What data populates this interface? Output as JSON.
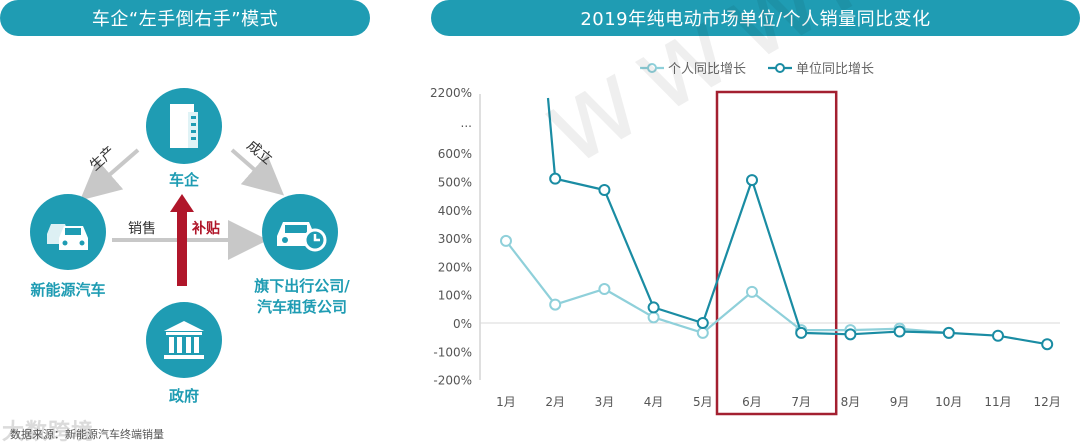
{
  "left_panel": {
    "title": "车企“左手倒右手”模式",
    "nodes": {
      "top": "车企",
      "left": "新能源汽车",
      "right": [
        "旗下出行公司/",
        "汽车租赁公司"
      ],
      "bottom": "政府"
    },
    "edges": {
      "produce": "生产",
      "establish": "成立",
      "sales": "销售",
      "subsidy": "补贴"
    },
    "colors": {
      "accent": "#1f9cb3",
      "highlight": "#b0162a",
      "arrow": "#c8c8c8"
    }
  },
  "footnote": "数据来源：新能源汽车终端销量",
  "watermark_logo": "大数跨境",
  "chart_panel": {
    "title": "2019年纯电动市场单位/个人销量同比变化"
  },
  "watermark_text": "www.way-s.cn",
  "chart_data": {
    "type": "line",
    "title": "2019年纯电动市场单位/个人销量同比变化",
    "categories": [
      "1月",
      "2月",
      "3月",
      "4月",
      "5月",
      "6月",
      "7月",
      "8月",
      "9月",
      "10月",
      "11月",
      "12月"
    ],
    "y_tick_labels": [
      "2200%",
      "...",
      "600%",
      "500%",
      "400%",
      "300%",
      "200%",
      "100%",
      "0%",
      "-100%",
      "-200%"
    ],
    "y_scale": "broken: -200% to 600% linear, break marked '...', top tick 2200%",
    "series": [
      {
        "name": "个人同比增长",
        "color": "#8fd0da",
        "values": [
          290,
          65,
          120,
          20,
          -35,
          110,
          -25,
          -25,
          -20,
          -35,
          null,
          null
        ]
      },
      {
        "name": "单位同比增长",
        "color": "#1a8ca3",
        "values": [
          null,
          510,
          470,
          55,
          0,
          505,
          -35,
          -40,
          -30,
          -35,
          -45,
          -75
        ],
        "note_jan": "above 2200%, line exits top"
      }
    ],
    "legend_position": "top",
    "highlight_range": [
      "6月",
      "7月"
    ],
    "highlight_color": "#a32030",
    "grid": false
  }
}
